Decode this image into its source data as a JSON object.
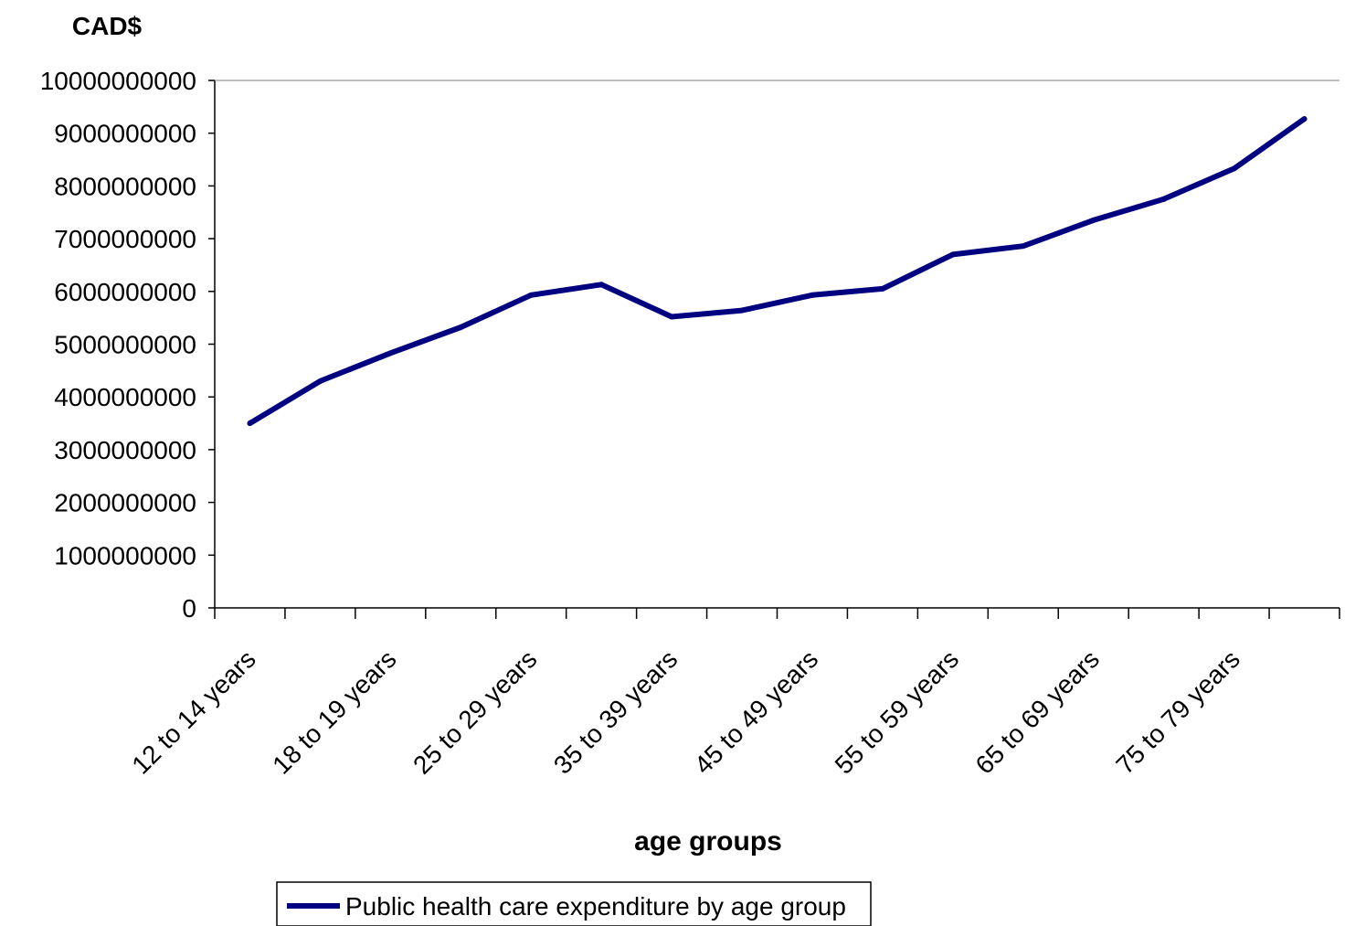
{
  "chart_data": {
    "type": "line",
    "title": "",
    "ylabel": "CAD$",
    "xlabel": "age groups",
    "ylim": [
      0,
      10000000000
    ],
    "yticks": [
      0,
      1000000000,
      2000000000,
      3000000000,
      4000000000,
      5000000000,
      6000000000,
      7000000000,
      8000000000,
      9000000000,
      10000000000
    ],
    "categories": [
      "12 to 14 years",
      "",
      "18 to 19 years",
      "",
      "25 to 29 years",
      "",
      "35 to 39 years",
      "",
      "45 to 49 years",
      "",
      "55 to 59 years",
      "",
      "65 to 69 years",
      "",
      "75 to 79 years",
      ""
    ],
    "series": [
      {
        "name": "Public health care expenditure by age group",
        "color": "#000080",
        "values": [
          3500000000,
          4300000000,
          4830000000,
          5320000000,
          5930000000,
          6130000000,
          5520000000,
          5640000000,
          5930000000,
          6050000000,
          6700000000,
          6860000000,
          7350000000,
          7750000000,
          8330000000,
          9270000000
        ]
      }
    ],
    "legend": "bottom",
    "grid": false
  }
}
